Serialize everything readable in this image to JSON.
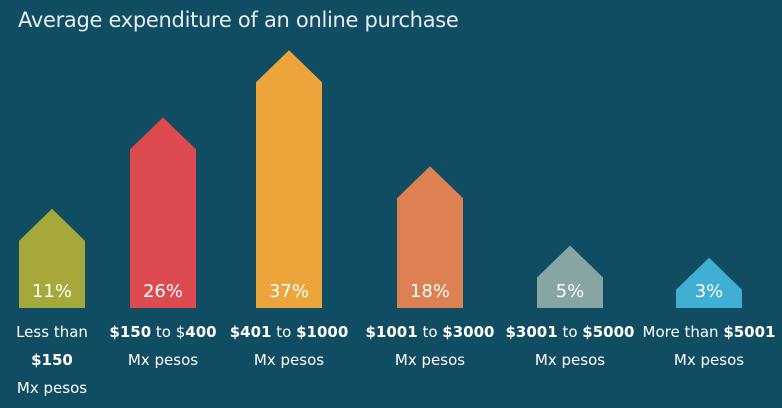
{
  "chart_data": {
    "type": "bar",
    "title": "Average expenditure of an online purchase",
    "categories": [
      "Less than $150 Mx pesos",
      "$150 to $400 Mx pesos",
      "$401 to $1000 Mx pesos",
      "$1001 to $3000 Mx pesos",
      "$3001 to $5000 Mx pesos",
      "More than $5001 Mx pesos"
    ],
    "values": [
      11,
      26,
      37,
      18,
      5,
      3
    ],
    "value_labels": [
      "11%",
      "26%",
      "37%",
      "18%",
      "5%",
      "3%"
    ],
    "category_lines": [
      [
        [
          {
            "t": "Less than",
            "b": false
          }
        ],
        [
          {
            "t": "$150",
            "b": true
          }
        ],
        [
          {
            "t": "Mx pesos",
            "b": false
          }
        ]
      ],
      [
        [
          {
            "t": "$150",
            "b": true
          },
          {
            "t": " to $",
            "b": false
          },
          {
            "t": "400",
            "b": true
          }
        ],
        [
          {
            "t": "Mx pesos",
            "b": false
          }
        ]
      ],
      [
        [
          {
            "t": "$401",
            "b": true
          },
          {
            "t": " to ",
            "b": false
          },
          {
            "t": "$1000",
            "b": true
          }
        ],
        [
          {
            "t": "Mx pesos",
            "b": false
          }
        ]
      ],
      [
        [
          {
            "t": "$1001",
            "b": true
          },
          {
            "t": " to ",
            "b": false
          },
          {
            "t": "$3000",
            "b": true
          }
        ],
        [
          {
            "t": "Mx pesos",
            "b": false
          }
        ]
      ],
      [
        [
          {
            "t": "$3001",
            "b": true
          },
          {
            "t": " to ",
            "b": false
          },
          {
            "t": "$5000",
            "b": true
          }
        ],
        [
          {
            "t": "Mx pesos",
            "b": false
          }
        ]
      ],
      [
        [
          {
            "t": "More than ",
            "b": false
          },
          {
            "t": "$5001",
            "b": true
          }
        ],
        [
          {
            "t": "Mx pesos",
            "b": false
          }
        ]
      ]
    ],
    "colors": [
      "#a6a93a",
      "#dd4a50",
      "#eba53a",
      "#dd8153",
      "#88a5a6",
      "#40afd3"
    ],
    "background": "#104d62",
    "ylim": [
      0,
      37
    ],
    "grid": false,
    "legend": "none"
  }
}
